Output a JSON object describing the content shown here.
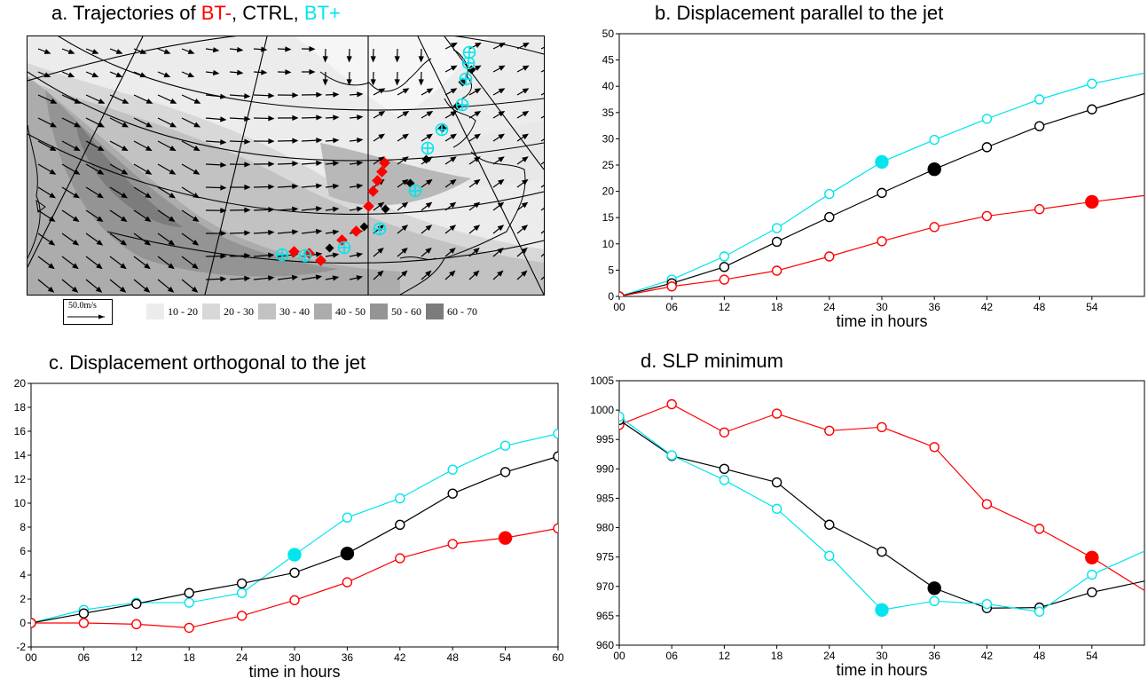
{
  "panel_a": {
    "title_prefix": "a. Trajectories of ",
    "title_bt_minus": "BT-",
    "title_sep1": ", ",
    "title_ctrl": "CTRL",
    "title_sep2": ", ",
    "title_bt_plus": "BT+",
    "scale_label": "50.0m/s",
    "legend": [
      {
        "label": "10 - 20",
        "color": "#ececec"
      },
      {
        "label": "20 - 30",
        "color": "#d8d8d8"
      },
      {
        "label": "30 - 40",
        "color": "#c2c2c2"
      },
      {
        "label": "40 - 50",
        "color": "#acacac"
      },
      {
        "label": "50 - 60",
        "color": "#949494"
      },
      {
        "label": "60 - 70",
        "color": "#7c7c7c"
      }
    ],
    "colors": {
      "bt_minus": "#ff0000",
      "ctrl": "#000000",
      "bt_plus": "#00e5ee"
    }
  },
  "chart_data": [
    {
      "type": "line",
      "title": "b. Displacement parallel to the jet",
      "xlabel": "time in hours",
      "ylabel": "",
      "xlim": [
        0,
        60
      ],
      "ylim": [
        0,
        50
      ],
      "xticks": [
        "00",
        "06",
        "12",
        "18",
        "24",
        "30",
        "36",
        "42",
        "48",
        "54"
      ],
      "yticks": [
        "0",
        "5",
        "10",
        "15",
        "20",
        "25",
        "30",
        "35",
        "40",
        "45",
        "50"
      ],
      "x": [
        0,
        6,
        12,
        18,
        24,
        30,
        36,
        42,
        48,
        54,
        60
      ],
      "series": [
        {
          "color": "#00e5ee",
          "values": [
            0,
            3.2,
            7.6,
            13.0,
            19.5,
            25.6,
            29.8,
            33.8,
            37.5,
            40.5,
            42.5
          ],
          "filled_index": 5
        },
        {
          "color": "#000000",
          "values": [
            0,
            2.5,
            5.6,
            10.4,
            15.1,
            19.7,
            24.2,
            28.4,
            32.4,
            35.6,
            38.6
          ],
          "filled_index": 6
        },
        {
          "color": "#ff0000",
          "values": [
            0,
            1.9,
            3.2,
            4.9,
            7.6,
            10.5,
            13.2,
            15.3,
            16.6,
            18.0,
            19.2
          ],
          "filled_index": 9
        }
      ]
    },
    {
      "type": "line",
      "title": "c. Displacement orthogonal to the jet",
      "xlabel": "time in hours",
      "ylabel": "",
      "xlim": [
        0,
        60
      ],
      "ylim": [
        -2,
        20
      ],
      "xticks": [
        "00",
        "06",
        "12",
        "18",
        "24",
        "30",
        "36",
        "42",
        "48",
        "54",
        "60"
      ],
      "yticks": [
        "-2",
        "0",
        "2",
        "4",
        "6",
        "8",
        "10",
        "12",
        "14",
        "16",
        "18",
        "20"
      ],
      "x": [
        0,
        6,
        12,
        18,
        24,
        30,
        36,
        42,
        48,
        54,
        60
      ],
      "series": [
        {
          "color": "#00e5ee",
          "values": [
            0,
            1.1,
            1.7,
            1.7,
            2.5,
            5.7,
            8.8,
            10.4,
            12.8,
            14.8,
            15.8
          ],
          "filled_index": 5
        },
        {
          "color": "#000000",
          "values": [
            0,
            0.8,
            1.6,
            2.5,
            3.3,
            4.2,
            5.8,
            8.2,
            10.8,
            12.6,
            13.9
          ],
          "filled_index": 6
        },
        {
          "color": "#ff0000",
          "values": [
            0,
            0,
            -0.1,
            -0.4,
            0.6,
            1.9,
            3.4,
            5.4,
            6.6,
            7.1,
            7.9
          ],
          "filled_index": 9
        }
      ]
    },
    {
      "type": "line",
      "title": "d. SLP minimum",
      "xlabel": "time in hours",
      "ylabel": "",
      "xlim": [
        0,
        60
      ],
      "ylim": [
        960,
        1005
      ],
      "xticks": [
        "00",
        "06",
        "12",
        "18",
        "24",
        "30",
        "36",
        "42",
        "48",
        "54"
      ],
      "yticks": [
        "960",
        "965",
        "970",
        "975",
        "980",
        "985",
        "990",
        "995",
        "1000",
        "1005"
      ],
      "x": [
        0,
        6,
        12,
        18,
        24,
        30,
        36,
        42,
        48,
        54,
        60
      ],
      "series": [
        {
          "color": "#ff0000",
          "values": [
            997.5,
            1001,
            996.2,
            999.4,
            996.5,
            997.1,
            993.7,
            984.0,
            979.8,
            974.9,
            969.3
          ],
          "filled_index": 9
        },
        {
          "color": "#000000",
          "values": [
            998.3,
            992.2,
            990.0,
            987.7,
            980.5,
            975.9,
            969.7,
            966.3,
            966.4,
            969.0,
            970.9
          ],
          "filled_index": 6
        },
        {
          "color": "#00e5ee",
          "values": [
            998.9,
            992.3,
            988.1,
            983.2,
            975.2,
            966.0,
            967.5,
            967.0,
            965.7,
            972.0,
            976.0
          ],
          "filled_index": 5
        }
      ]
    }
  ]
}
